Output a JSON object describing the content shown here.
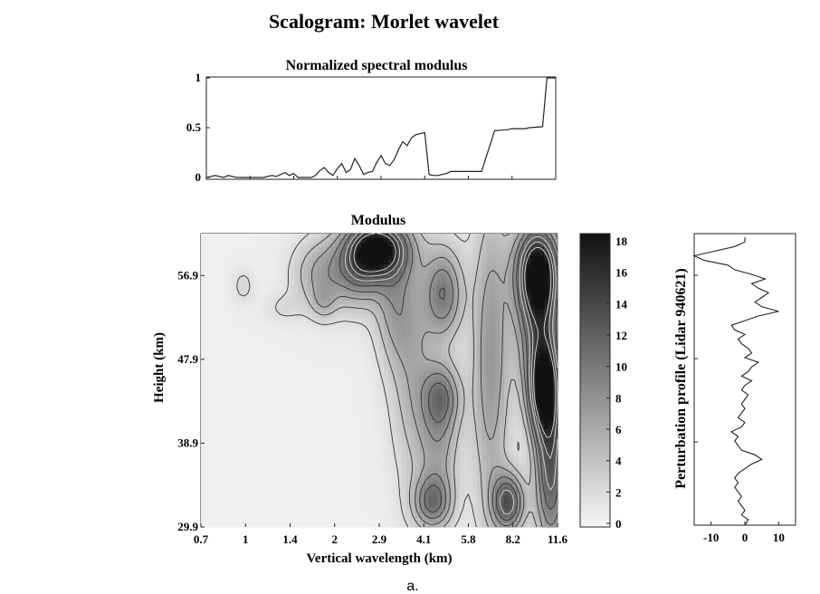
{
  "figure": {
    "title": "Scalogram: Morlet wavelet",
    "caption": "a."
  },
  "chart_data": [
    {
      "type": "line",
      "title": "Normalized spectral modulus",
      "xlabel": "",
      "ylabel": "",
      "ylim": [
        0,
        1
      ],
      "y_ticks": [
        "0",
        "0.5",
        "1"
      ],
      "x_wavelength_ticks": [
        "0.7",
        "1",
        "1.4",
        "2",
        "2.9",
        "4.1",
        "5.8",
        "8.2",
        "11.6"
      ],
      "x_index": [
        0,
        0.1,
        0.2,
        0.3,
        0.4,
        0.5,
        0.6,
        0.7,
        0.8,
        0.9,
        1.0,
        1.1,
        1.2,
        1.3,
        1.4,
        1.5,
        1.6,
        1.7,
        1.8,
        1.9,
        2.0,
        2.1,
        2.2,
        2.3,
        2.4,
        2.5,
        2.6,
        2.7,
        2.8,
        2.9,
        3.0,
        3.1,
        3.2,
        3.3,
        3.4,
        3.5,
        3.6,
        3.7,
        3.8,
        3.9,
        4.0,
        4.1,
        4.2,
        4.3,
        4.4,
        4.5,
        4.6,
        4.7,
        4.8,
        4.9,
        5.0,
        5.1,
        5.2,
        5.3,
        5.4,
        5.5,
        5.6,
        5.7,
        5.8,
        5.9,
        6.0,
        6.3,
        6.6,
        6.9,
        7.0,
        7.15,
        7.3,
        7.4,
        7.7,
        7.8,
        8.0
      ],
      "values": [
        0,
        0.01,
        0.02,
        0.01,
        0,
        0.02,
        0.01,
        0,
        0,
        0,
        0,
        0,
        0,
        0,
        0.01,
        0.02,
        0.01,
        0.03,
        0.05,
        0.02,
        0.04,
        0,
        0,
        0,
        0,
        0.02,
        0.07,
        0.1,
        0.05,
        0.02,
        0.09,
        0.14,
        0.05,
        0.08,
        0.19,
        0.12,
        0.03,
        0.05,
        0.06,
        0.15,
        0.22,
        0.14,
        0.12,
        0.18,
        0.28,
        0.36,
        0.32,
        0.4,
        0.43,
        0.44,
        0.45,
        0.03,
        0.02,
        0.02,
        0.03,
        0.04,
        0.06,
        0.06,
        0.06,
        0.06,
        0.06,
        0.06,
        0.47,
        0.48,
        0.49,
        0.49,
        0.49,
        0.5,
        0.51,
        1.0,
        1.0
      ]
    },
    {
      "type": "heatmap",
      "title": "Modulus",
      "xlabel": "Vertical wavelength (km)",
      "ylabel": "Height (km)",
      "x_ticks": [
        "0.7",
        "1",
        "1.4",
        "2",
        "2.9",
        "4.1",
        "5.8",
        "8.2",
        "11.6"
      ],
      "y_ticks": [
        "29.9",
        "38.9",
        "47.9",
        "56.9"
      ],
      "ylim": [
        29.9,
        61.4
      ],
      "colorbar": {
        "ticks": [
          "0",
          "2",
          "4",
          "6",
          "8",
          "10",
          "12",
          "14",
          "16",
          "18"
        ],
        "range": [
          0,
          18.5
        ],
        "colormap": "white-to-black",
        "low_color": "#f6f6f6",
        "high_color": "#111111"
      },
      "peaks": [
        {
          "x": 0.95,
          "y": 55.8,
          "value": 2,
          "sx": 0.17,
          "sy": 1.3
        },
        {
          "x": 1.85,
          "y": 53.4,
          "value": 1.5,
          "sx": 0.3,
          "sy": 1.2
        },
        {
          "x": 2.75,
          "y": 54.0,
          "value": 3,
          "sx": 0.2,
          "sy": 1.3
        },
        {
          "x": 2.55,
          "y": 57.0,
          "value": 3.5,
          "sx": 0.4,
          "sy": 2.5
        },
        {
          "x": 3.05,
          "y": 57.5,
          "value": 4,
          "sx": 0.45,
          "sy": 3.0
        },
        {
          "x": 4.0,
          "y": 59.8,
          "value": 16,
          "sx": 0.45,
          "sy": 2.2
        },
        {
          "x": 3.6,
          "y": 58.0,
          "value": 7,
          "sx": 0.35,
          "sy": 3.0
        },
        {
          "x": 4.3,
          "y": 54.0,
          "value": 5,
          "sx": 0.3,
          "sy": 4.5
        },
        {
          "x": 4.75,
          "y": 48.0,
          "value": 5,
          "sx": 0.35,
          "sy": 9.0
        },
        {
          "x": 5.45,
          "y": 55.0,
          "value": 9,
          "sx": 0.3,
          "sy": 3.5
        },
        {
          "x": 5.4,
          "y": 44.0,
          "value": 8,
          "sx": 0.3,
          "sy": 2.5
        },
        {
          "x": 5.35,
          "y": 38.5,
          "value": 5.5,
          "sx": 0.32,
          "sy": 4.0
        },
        {
          "x": 5.2,
          "y": 32.5,
          "value": 9,
          "sx": 0.3,
          "sy": 2.0
        },
        {
          "x": 6.5,
          "y": 48.0,
          "value": 7,
          "sx": 0.3,
          "sy": 12.0
        },
        {
          "x": 6.9,
          "y": 32.5,
          "value": 12,
          "sx": 0.25,
          "sy": 2.2
        },
        {
          "x": 7.55,
          "y": 57.5,
          "value": 17,
          "sx": 0.35,
          "sy": 3.5
        },
        {
          "x": 7.7,
          "y": 44.5,
          "value": 15,
          "sx": 0.25,
          "sy": 3.5
        },
        {
          "x": 7.85,
          "y": 36.0,
          "value": 12,
          "sx": 0.25,
          "sy": 6.0
        },
        {
          "x": 7.6,
          "y": 51.0,
          "value": 10,
          "sx": 0.35,
          "sy": 5.0
        }
      ]
    },
    {
      "type": "line",
      "title": "",
      "xlabel": "",
      "ylabel": "Perturbation profile (Lidar 940621)",
      "x_ticks": [
        "-10",
        "0",
        "10"
      ],
      "xlim": [
        -15,
        15
      ],
      "ylim": [
        29.9,
        61.4
      ],
      "height": [
        29.9,
        30.5,
        31.0,
        31.5,
        32.0,
        32.5,
        33.0,
        33.5,
        34.0,
        34.5,
        35.0,
        35.5,
        36.0,
        36.5,
        37.0,
        37.5,
        38.0,
        38.5,
        39.0,
        39.5,
        40.0,
        40.5,
        41.0,
        41.5,
        42.0,
        42.5,
        43.0,
        43.5,
        44.0,
        44.5,
        45.0,
        45.5,
        46.0,
        46.5,
        47.0,
        47.5,
        48.0,
        48.5,
        49.0,
        49.5,
        50.0,
        50.5,
        51.0,
        51.5,
        52.0,
        52.5,
        53.0,
        53.5,
        54.0,
        54.5,
        55.0,
        55.5,
        56.0,
        56.5,
        57.0,
        57.5,
        58.0,
        58.5,
        59.0,
        59.5,
        60.0,
        60.5,
        61.0
      ],
      "values": [
        0,
        1,
        -1,
        0,
        -1,
        -2,
        -1,
        -2,
        -3,
        -2,
        -3,
        -2,
        0,
        2,
        5,
        3,
        -1,
        -2,
        -3,
        -2,
        -4,
        -1,
        0,
        -2,
        -1,
        0,
        -1,
        0,
        1,
        -1,
        0,
        2,
        -1,
        1,
        2,
        4,
        0,
        2,
        1,
        -1,
        -2,
        0,
        -3,
        -4,
        0,
        4,
        10,
        5,
        3,
        5,
        7,
        4,
        2,
        6,
        2,
        -3,
        -5,
        -12,
        -15,
        -9,
        -3,
        0,
        0
      ]
    }
  ]
}
